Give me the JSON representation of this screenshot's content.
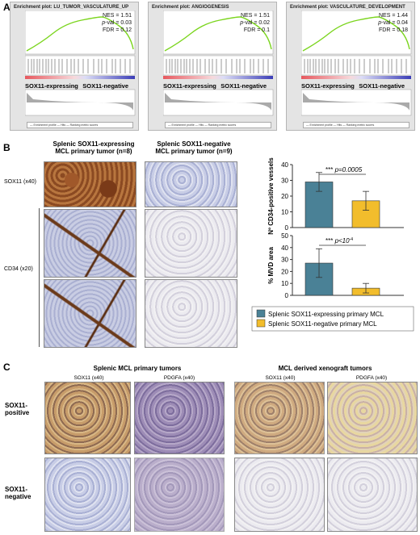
{
  "panel_A": {
    "letter": "A",
    "plots": [
      {
        "title": "Enrichment plot: LU_TUMOR_VASCULATURE_UP",
        "nes": "NES = 1.51",
        "pval_prefix": "p",
        "pval": "-val = 0.03",
        "fdr": "FDR = 0.12",
        "left_label": "SOX11-expressing",
        "right_label": "SOX11-negative"
      },
      {
        "title": "Enrichment plot: ANGIOGENESIS",
        "nes": "NES = 1.51",
        "pval_prefix": "p",
        "pval": "-val = 0.02",
        "fdr": "FDR = 0.1",
        "left_label": "SOX11-expressing",
        "right_label": "SOX11-negative"
      },
      {
        "title": "Enrichment plot: VASCULATURE_DEVELOPMENT",
        "nes": "NES = 1.44",
        "pval_prefix": "p",
        "pval": "-val = 0.04",
        "fdr": "FDR = 0.18",
        "left_label": "SOX11-expressing",
        "right_label": "SOX11-negative"
      }
    ],
    "legend": "— Enrichment profile — Hits — Ranking metric scores"
  },
  "panel_B": {
    "letter": "B",
    "col1_head": "Splenic SOX11-expressing\nMCL primary tumor (n=8)",
    "col2_head": "Splenic SOX11-negative\nMCL primary tumor (n=9)",
    "row1_label": "SOX11 (x40)",
    "row2_label": "CD34 (x20)"
  },
  "chart_data": [
    {
      "type": "bar",
      "categories": [
        "Splenic SOX11-expressing primary MCL",
        "Splenic SOX11-negative primary MCL"
      ],
      "values": [
        29,
        17
      ],
      "errors": [
        6,
        6
      ],
      "ylabel": "Nº CD34-positive vessels",
      "ylim": [
        0,
        40
      ],
      "yticks": [
        "0",
        "10",
        "20",
        "30",
        "40"
      ],
      "annotation_stars": "***",
      "annotation_p": "p=0.0005",
      "colors": [
        "#4a8196",
        "#f2bd2c"
      ]
    },
    {
      "type": "bar",
      "categories": [
        "Splenic SOX11-expressing primary MCL",
        "Splenic SOX11-negative primary MCL"
      ],
      "values": [
        27,
        6
      ],
      "errors": [
        12,
        4
      ],
      "ylabel": "% MVD area",
      "ylim": [
        0,
        50
      ],
      "yticks": [
        "0",
        "10",
        "20",
        "30",
        "40",
        "50"
      ],
      "annotation_stars": "***",
      "annotation_p": "p<10",
      "annotation_exp": "-4",
      "colors": [
        "#4a8196",
        "#f2bd2c"
      ],
      "legend": [
        "Splenic SOX11-expressing primary MCL",
        "Splenic SOX11-negative primary MCL"
      ]
    }
  ],
  "panel_C": {
    "letter": "C",
    "group1": "Splenic MCL primary tumors",
    "group2": "MCL derived xenograft tumors",
    "cols": [
      "SOX11 (x40)",
      "PDGFA (x40)",
      "SOX11 (x40)",
      "PDGFA (x40)"
    ],
    "row1": "SOX11-\npositive",
    "row2": "SOX11-\nnegative"
  }
}
